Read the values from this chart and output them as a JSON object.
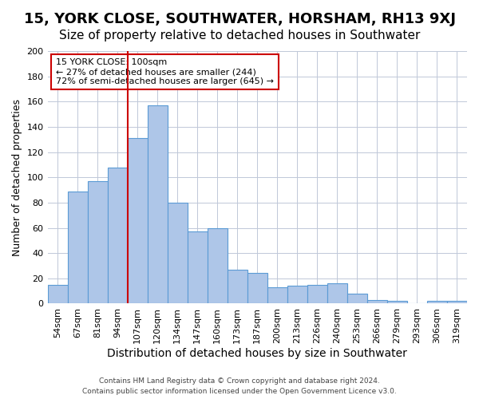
{
  "title": "15, YORK CLOSE, SOUTHWATER, HORSHAM, RH13 9XJ",
  "subtitle": "Size of property relative to detached houses in Southwater",
  "xlabel": "Distribution of detached houses by size in Southwater",
  "ylabel": "Number of detached properties",
  "footer_line1": "Contains HM Land Registry data © Crown copyright and database right 2024.",
  "footer_line2": "Contains public sector information licensed under the Open Government Licence v3.0.",
  "bar_labels": [
    "54sqm",
    "67sqm",
    "81sqm",
    "94sqm",
    "107sqm",
    "120sqm",
    "134sqm",
    "147sqm",
    "160sqm",
    "173sqm",
    "187sqm",
    "200sqm",
    "213sqm",
    "226sqm",
    "240sqm",
    "253sqm",
    "266sqm",
    "279sqm",
    "293sqm",
    "306sqm",
    "319sqm"
  ],
  "bar_values": [
    15,
    89,
    97,
    108,
    131,
    157,
    80,
    57,
    60,
    27,
    24,
    13,
    14,
    15,
    16,
    8,
    3,
    2,
    0,
    2,
    2
  ],
  "bar_color": "#aec6e8",
  "bar_edge_color": "#5b9bd5",
  "vline_color": "#cc0000",
  "vline_pos": 3.5,
  "annotation_title": "15 YORK CLOSE: 100sqm",
  "annotation_line1": "← 27% of detached houses are smaller (244)",
  "annotation_line2": "72% of semi-detached houses are larger (645) →",
  "annotation_box_color": "#ffffff",
  "annotation_box_edge": "#cc0000",
  "ylim": [
    0,
    200
  ],
  "yticks": [
    0,
    20,
    40,
    60,
    80,
    100,
    120,
    140,
    160,
    180,
    200
  ],
  "background_color": "#ffffff",
  "grid_color": "#c0c8d8",
  "title_fontsize": 13,
  "subtitle_fontsize": 11,
  "xlabel_fontsize": 10,
  "ylabel_fontsize": 9,
  "tick_fontsize": 8
}
